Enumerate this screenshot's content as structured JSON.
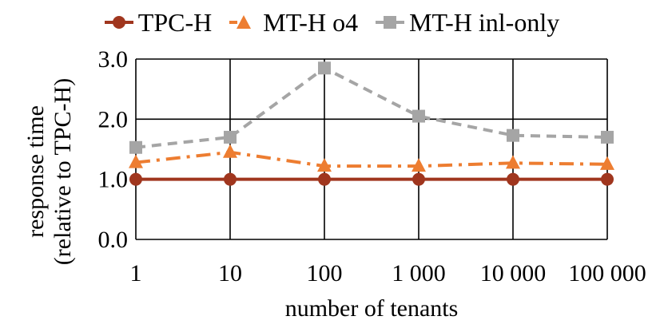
{
  "chart_data": {
    "type": "line",
    "title": "",
    "xlabel": "number of tenants",
    "ylabel_line1": "response time",
    "ylabel_line2": "(relative to TPC-H)",
    "categories": [
      "1",
      "10",
      "100",
      "1 000",
      "10 000",
      "100 000"
    ],
    "ylim": [
      0,
      3
    ],
    "yticks": [
      "0.0",
      "1.0",
      "2.0",
      "3.0"
    ],
    "grid": true,
    "legend_position": "top",
    "series": [
      {
        "name": "TPC-H",
        "values": [
          1.0,
          1.0,
          1.0,
          1.0,
          1.0,
          1.0
        ],
        "color": "#a0361e",
        "marker": "circle",
        "dash": "solid"
      },
      {
        "name": "MT-H o4",
        "values": [
          1.28,
          1.45,
          1.22,
          1.22,
          1.27,
          1.25
        ],
        "color": "#ed7d31",
        "marker": "triangle",
        "dash": "dash-dot"
      },
      {
        "name": "MT-H inl-only",
        "values": [
          1.53,
          1.7,
          2.85,
          2.05,
          1.73,
          1.7
        ],
        "color": "#a5a5a5",
        "marker": "square",
        "dash": "dash"
      }
    ]
  }
}
